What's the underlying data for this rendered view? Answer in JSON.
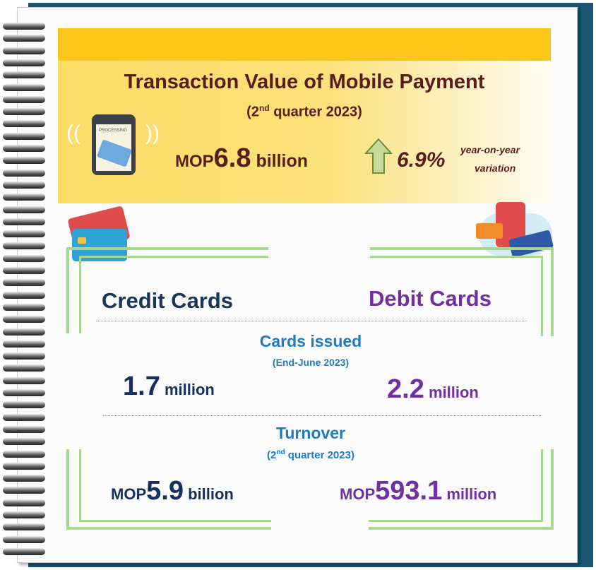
{
  "header": {
    "title": "Transaction Value of Mobile Payment",
    "period_pre": "(2",
    "period_sup": "nd",
    "period_post": " quarter 2023)",
    "phone_screen_text": "PROCESSING",
    "value_prefix": "MOP",
    "value": "6.8",
    "value_unit": " billion",
    "change": "6.9%",
    "change_label_1": "year-on-year",
    "change_label_2": "variation",
    "change_direction": "up"
  },
  "credit": {
    "title": "Credit Cards",
    "cards_issued_value": "1.7",
    "cards_issued_unit": " million",
    "turnover_prefix": "MOP",
    "turnover_value": "5.9",
    "turnover_unit": " billion"
  },
  "debit": {
    "title": "Debit Cards",
    "cards_issued_value": "2.2",
    "cards_issued_unit": " million",
    "turnover_prefix": "MOP",
    "turnover_value": "593.1",
    "turnover_unit": " million"
  },
  "cards_issued": {
    "label": "Cards issued",
    "date": "(End-June 2023)"
  },
  "turnover": {
    "label": "Turnover",
    "period_pre": "(2",
    "period_sup": "nd",
    "period_post": " quarter 2023)"
  },
  "colors": {
    "navy": "#15305f",
    "purple": "#7030a0",
    "blue": "#1f7ac0",
    "brown": "#5a1c1c",
    "yellow": "#fdc61b",
    "green": "#a8d88f"
  }
}
